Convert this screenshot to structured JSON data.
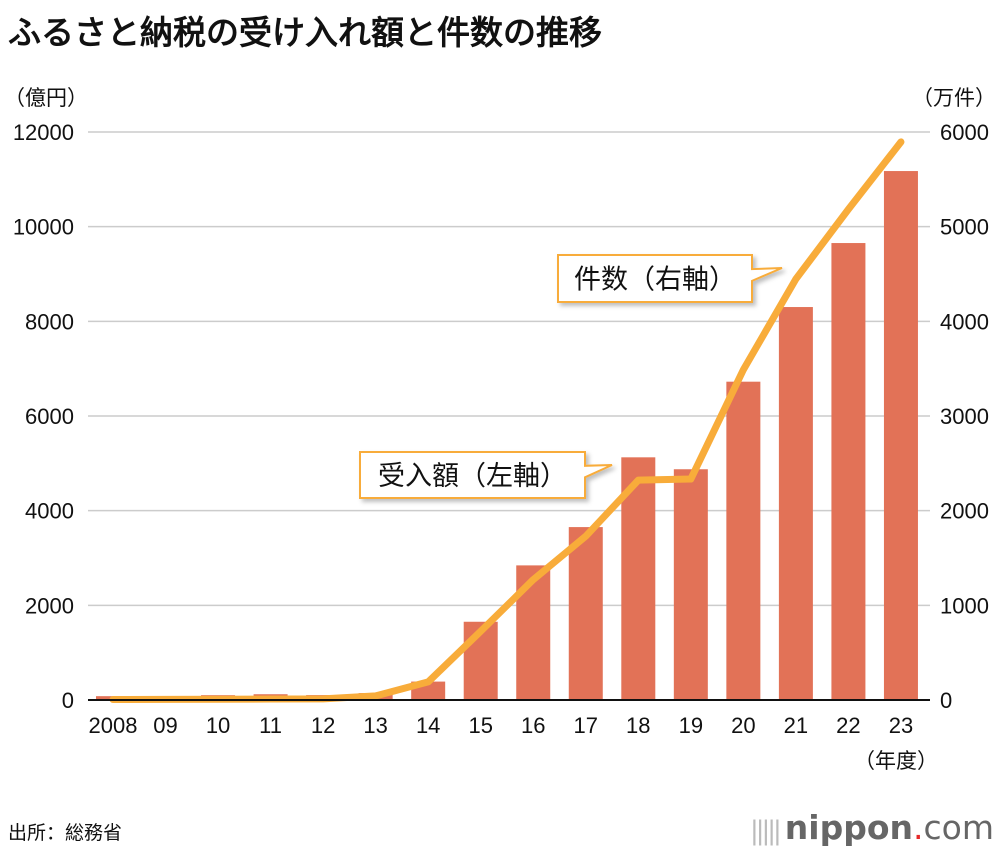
{
  "title": "ふるさと納税の受け入れ額と件数の推移",
  "source": "出所：総務省",
  "logo": {
    "name": "nippon",
    "dot": ".",
    "suffix": "com",
    "icon": "sound-bars-icon"
  },
  "colors": {
    "bar": "#e27257",
    "line": "#f8ac3a",
    "grid": "#cccccc",
    "callout_border": "#f8ac3a"
  },
  "chart_data": {
    "type": "bar+line",
    "title": "ふるさと納税の受け入れ額と件数の推移",
    "left_unit": "（億円）",
    "right_unit": "（万件）",
    "x_unit": "（年度）",
    "categories": [
      "2008",
      "09",
      "10",
      "11",
      "12",
      "13",
      "14",
      "15",
      "16",
      "17",
      "18",
      "19",
      "20",
      "21",
      "22",
      "23"
    ],
    "left_ticks": [
      "0",
      "2000",
      "4000",
      "6000",
      "8000",
      "10000",
      "12000"
    ],
    "right_ticks": [
      "0",
      "1000",
      "2000",
      "3000",
      "4000",
      "5000",
      "6000"
    ],
    "ylim_left": [
      0,
      12000
    ],
    "ylim_right": [
      0,
      6000
    ],
    "grid": true,
    "series": [
      {
        "name": "受入額（左軸）",
        "type": "bar",
        "axis": "left",
        "values": [
          81,
          77,
          102,
          122,
          104,
          146,
          389,
          1653,
          2844,
          3653,
          5127,
          4875,
          6725,
          8302,
          9654,
          11175
        ]
      },
      {
        "name": "件数（右軸）",
        "type": "line",
        "axis": "right",
        "values": [
          5,
          6,
          8,
          10,
          12,
          43,
          191,
          726,
          1271,
          1730,
          2322,
          2334,
          3489,
          4447,
          5184,
          5895
        ]
      }
    ]
  }
}
